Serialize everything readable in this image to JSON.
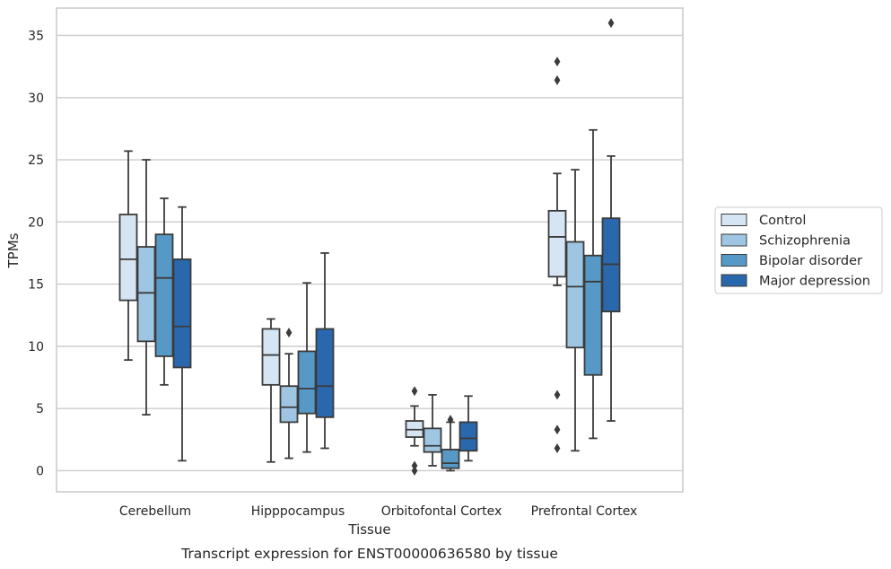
{
  "chart_data": {
    "type": "box",
    "xlabel": "Tissue",
    "ylabel": "TPMs",
    "caption": "Transcript expression for ENST00000636580 by tissue",
    "ylim": [
      -1.7,
      37.2
    ],
    "yticks": [
      0,
      5,
      10,
      15,
      20,
      25,
      30,
      35
    ],
    "grid": "horizontal",
    "legend_position": "right",
    "categories": [
      "Cerebellum",
      "Hipppocampus",
      "Orbitofontal Cortex",
      "Prefrontal Cortex"
    ],
    "series": [
      {
        "name": "Control",
        "color": "#d6e5f4",
        "boxes": [
          {
            "whislo": 8.9,
            "q1": 13.7,
            "med": 17.0,
            "q3": 20.6,
            "whishi": 25.7,
            "fliers": []
          },
          {
            "whislo": 0.7,
            "q1": 6.9,
            "med": 9.3,
            "q3": 11.4,
            "whishi": 12.2,
            "fliers": []
          },
          {
            "whislo": 2.0,
            "q1": 2.7,
            "med": 3.3,
            "q3": 4.0,
            "whishi": 5.2,
            "fliers": [
              6.4,
              0.4,
              0.0
            ]
          },
          {
            "whislo": 14.9,
            "q1": 15.6,
            "med": 18.8,
            "q3": 20.9,
            "whishi": 23.9,
            "fliers": [
              32.9,
              31.4,
              6.1,
              3.3,
              1.8
            ]
          }
        ]
      },
      {
        "name": "Schizophrenia",
        "color": "#9ec5e1",
        "boxes": [
          {
            "whislo": 4.5,
            "q1": 10.4,
            "med": 14.3,
            "q3": 18.0,
            "whishi": 25.0,
            "fliers": []
          },
          {
            "whislo": 1.0,
            "q1": 3.9,
            "med": 5.1,
            "q3": 6.8,
            "whishi": 9.4,
            "fliers": [
              11.1
            ]
          },
          {
            "whislo": 0.4,
            "q1": 1.5,
            "med": 2.0,
            "q3": 3.4,
            "whishi": 6.1,
            "fliers": []
          },
          {
            "whislo": 1.6,
            "q1": 9.9,
            "med": 14.8,
            "q3": 18.4,
            "whishi": 24.2,
            "fliers": []
          }
        ]
      },
      {
        "name": "Bipolar disorder",
        "color": "#5799c6",
        "boxes": [
          {
            "whislo": 6.9,
            "q1": 9.2,
            "med": 15.5,
            "q3": 19.0,
            "whishi": 21.9,
            "fliers": []
          },
          {
            "whislo": 1.5,
            "q1": 4.6,
            "med": 6.6,
            "q3": 9.6,
            "whishi": 15.1,
            "fliers": []
          },
          {
            "whislo": 0.0,
            "q1": 0.2,
            "med": 0.6,
            "q3": 1.7,
            "whishi": 3.9,
            "fliers": [
              4.1
            ]
          },
          {
            "whislo": 2.6,
            "q1": 7.7,
            "med": 15.2,
            "q3": 17.3,
            "whishi": 27.4,
            "fliers": []
          }
        ]
      },
      {
        "name": "Major depression",
        "color": "#2a68ad",
        "boxes": [
          {
            "whislo": 0.8,
            "q1": 8.3,
            "med": 11.6,
            "q3": 17.0,
            "whishi": 21.2,
            "fliers": []
          },
          {
            "whislo": 1.8,
            "q1": 4.3,
            "med": 6.8,
            "q3": 11.4,
            "whishi": 17.5,
            "fliers": []
          },
          {
            "whislo": 0.8,
            "q1": 1.6,
            "med": 2.6,
            "q3": 3.9,
            "whishi": 6.0,
            "fliers": []
          },
          {
            "whislo": 4.0,
            "q1": 12.8,
            "med": 16.6,
            "q3": 20.3,
            "whishi": 25.3,
            "fliers": [
              36.0
            ]
          }
        ]
      }
    ]
  }
}
